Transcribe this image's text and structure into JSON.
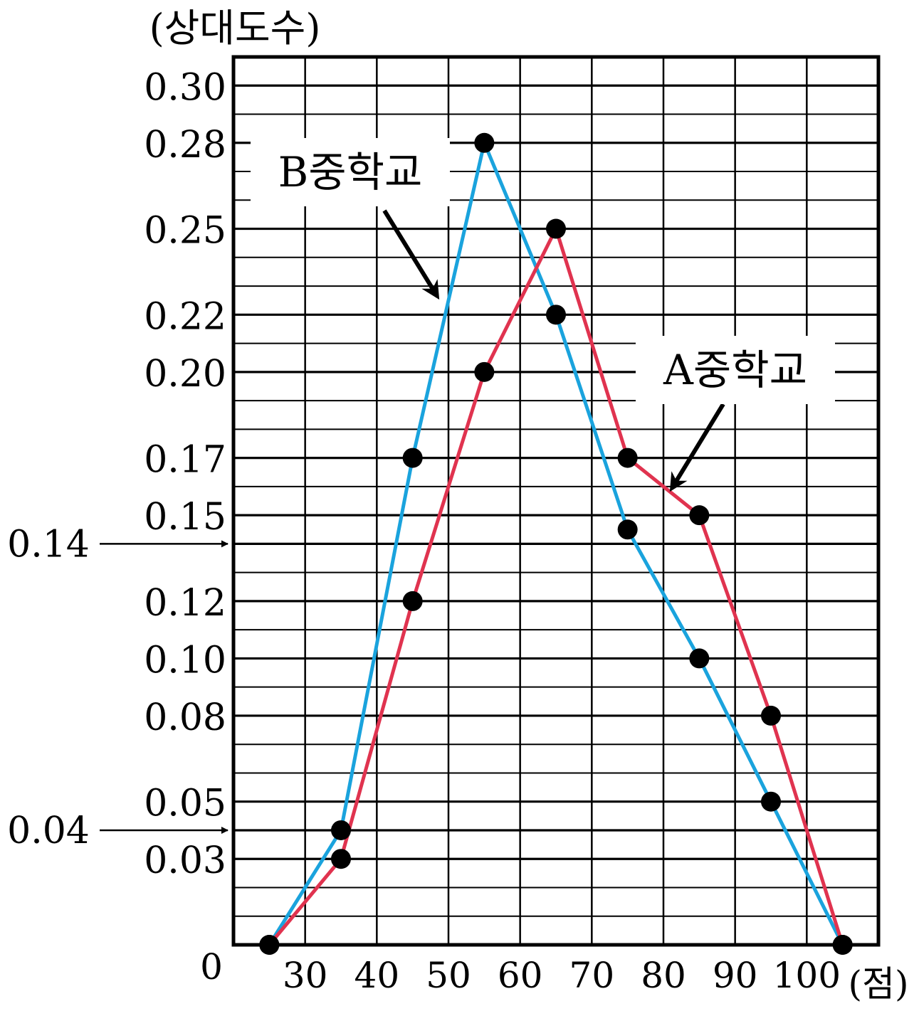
{
  "chart_data": {
    "type": "line",
    "ylabel": "(상대도수)",
    "xlabel": "(점)",
    "origin_label": "0",
    "x_ticks": [
      30,
      40,
      50,
      60,
      70,
      80,
      90,
      100
    ],
    "x_tick_labels": [
      "30",
      "40",
      "50",
      "60",
      "70",
      "80",
      "90",
      "100"
    ],
    "y_tick_labels": [
      "0.30",
      "0.28",
      "0.25",
      "0.22",
      "0.20",
      "0.17",
      "0.15",
      "0.12",
      "0.10",
      "0.08",
      "0.05",
      "0.03"
    ],
    "y_tick_values": [
      0.3,
      0.28,
      0.25,
      0.22,
      0.2,
      0.17,
      0.15,
      0.12,
      0.1,
      0.08,
      0.05,
      0.03
    ],
    "arrow_labels": [
      {
        "label": "0.14",
        "value": 0.14
      },
      {
        "label": "0.04",
        "value": 0.04
      }
    ],
    "xlim": [
      20,
      110
    ],
    "ylim": [
      0,
      0.31
    ],
    "grid": true,
    "series": [
      {
        "name": "B중학교",
        "color": "#1aa3dd",
        "x": [
          25,
          35,
          45,
          55,
          65,
          75,
          85,
          95,
          105
        ],
        "y": [
          0,
          0.04,
          0.17,
          0.28,
          0.22,
          0.145,
          0.1,
          0.05,
          0
        ]
      },
      {
        "name": "A중학교",
        "color": "#e0334f",
        "x": [
          25,
          35,
          45,
          55,
          65,
          75,
          85,
          95,
          105
        ],
        "y": [
          0,
          0.03,
          0.12,
          0.2,
          0.25,
          0.17,
          0.15,
          0.08,
          0
        ]
      }
    ]
  }
}
